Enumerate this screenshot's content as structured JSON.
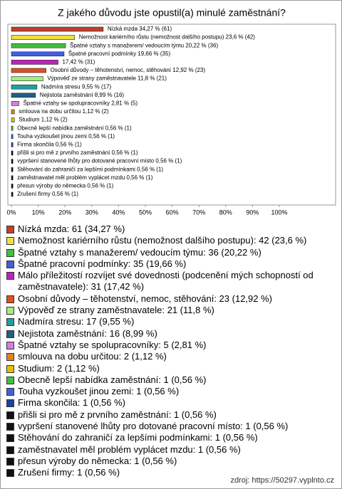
{
  "chart_data": {
    "type": "bar",
    "title": "Z jakého důvodu jste opustil(a) minulé zaměstnání?",
    "values": [
      34.27,
      23.6,
      20.22,
      19.66,
      17.42,
      12.92,
      11.8,
      9.55,
      8.99,
      2.81,
      1.12,
      1.12,
      0.56,
      0.56,
      0.56,
      0.56,
      0.56,
      0.56,
      0.56,
      0.56,
      0.56
    ],
    "value_labels": [
      "Nízká mzda 34,27 % (61)",
      "Nemožnost kariérního růstu (nemožnost dalšího postupu) 23,6 % (42)",
      "Špatné vztahy s manažerem/ vedoucím týmu 20,22 % (36)",
      "Špatné pracovní podmínky 19,66 % (35)",
      "17,42 % (31)",
      "Osobní důvody – těhotenství, nemoc, stěhování 12,92 % (23)",
      "Výpověď ze strany zaměstnavatele 11,8 % (21)",
      "Nadmíra stresu 9,55 % (17)",
      "Nejistota zaměstnání 8,99 % (16)",
      "Špatné vztahy se spolupracovníky 2,81 % (5)",
      "smlouva na dobu určitou 1,12 % (2)",
      "Studium 1,12 % (2)",
      "Obecně lepší nabídka zaměstnání 0,56 % (1)",
      "Touha vyzkoušet jinou zemi 0,56 % (1)",
      "Firma skončila 0,56 % (1)",
      "přišli si pro mě z prvního zaměstnání 0,56 % (1)",
      "vypršení stanovené lhůty pro dotované pracovní místo 0,56 % (1)",
      "Stěhování do zahraničí za lepšími podmínkami 0,56 % (1)",
      "zaměstnavatel měl problém vyplácet mzdu 0,56 % (1)",
      "přesun výroby do německa 0,56 % (1)",
      "Zrušení firmy 0,56 % (1)"
    ],
    "legend": [
      "Nízká mzda: 61 (34,27 %)",
      "Nemožnost kariérního růstu (nemožnost dalšího postupu): 42 (23,6 %)",
      "Špatné vztahy s manažerem/ vedoucím týmu: 36 (20,22 %)",
      "Špatné pracovní podmínky: 35 (19,66 %)",
      "Málo příležitostí rozvíjet své dovednosti (podcenění mých schopností od zaměstnavatele): 31 (17,42 %)",
      "Osobní důvody – těhotenství, nemoc, stěhování: 23 (12,92 %)",
      "Výpověď ze strany zaměstnavatele: 21 (11,8 %)",
      "Nadmíra stresu: 17 (9,55 %)",
      "Nejistota zaměstnání: 16 (8,99 %)",
      "Špatné vztahy se spolupracovníky: 5 (2,81 %)",
      "smlouva na dobu určitou: 2 (1,12 %)",
      "Studium: 2 (1,12 %)",
      "Obecně lepší nabídka zaměstnání: 1 (0,56 %)",
      "Touha vyzkoušet jinou zemi: 1 (0,56 %)",
      "Firma skončila: 1 (0,56 %)",
      "přišli si pro mě z prvního zaměstnání: 1 (0,56 %)",
      "vypršení stanovené lhůty pro dotované pracovní místo: 1 (0,56 %)",
      "Stěhování do zahraničí za lepšími podmínkami: 1 (0,56 %)",
      "zaměstnavatel měl problém vyplácet mzdu: 1 (0,56 %)",
      "přesun výroby do německa: 1 (0,56 %)",
      "Zrušení firmy: 1 (0,56 %)"
    ],
    "colors": [
      "#c0402a",
      "#f0e040",
      "#40c040",
      "#4060e0",
      "#c020c0",
      "#e05020",
      "#a0f080",
      "#20a0a0",
      "#206080",
      "#d080e0",
      "#e08020",
      "#e0c000",
      "#40c040",
      "#4060e0",
      "#2040a0",
      "#111111",
      "#111111",
      "#111111",
      "#111111",
      "#111111",
      "#111111"
    ],
    "xlim": [
      0,
      100
    ],
    "xticks": [
      {
        "value": 0,
        "label": "0%"
      },
      {
        "value": 10,
        "label": "10%"
      },
      {
        "value": 20,
        "label": "20%"
      },
      {
        "value": 30,
        "label": "30%"
      },
      {
        "value": 40,
        "label": "40%"
      },
      {
        "value": 50,
        "label": "50%"
      },
      {
        "value": 60,
        "label": "60%"
      },
      {
        "value": 70,
        "label": "70%"
      },
      {
        "value": 80,
        "label": "80%"
      },
      {
        "value": 90,
        "label": "90%"
      },
      {
        "value": 100,
        "label": "100%"
      }
    ],
    "source": "zdroj: https://50297.vyplnto.cz"
  }
}
